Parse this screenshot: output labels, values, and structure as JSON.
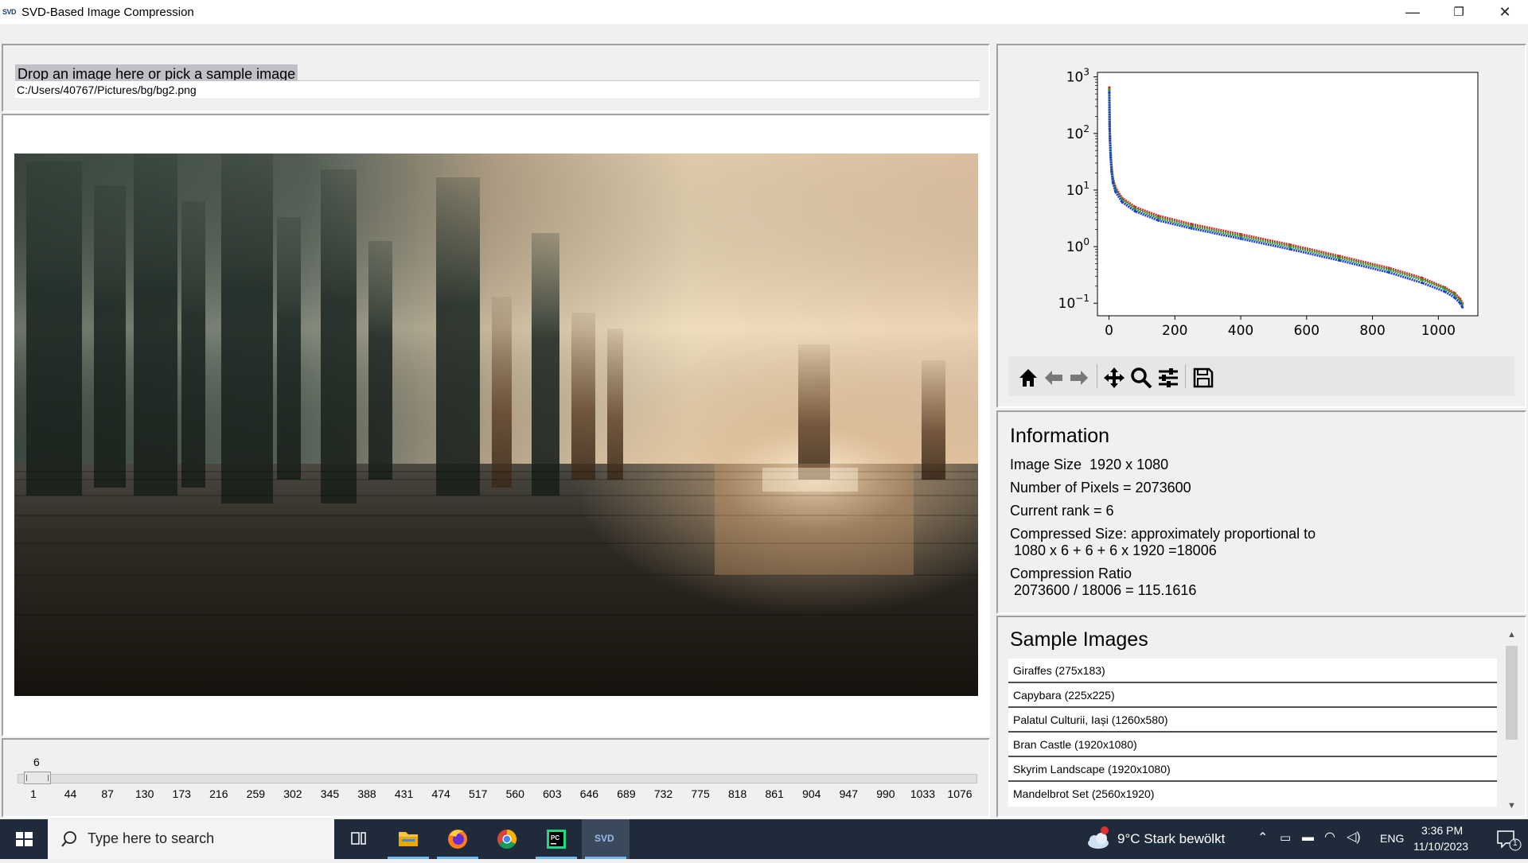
{
  "window": {
    "icon_text": "SVD",
    "title": "SVD-Based Image Compression",
    "minimize": "—",
    "restore": "❐",
    "close": "✕"
  },
  "input": {
    "drop_label": "Drop an image here or pick a sample image",
    "path_value": "C:/Users/40767/Pictures/bg/bg2.png"
  },
  "slider": {
    "current_value": "6",
    "min": 1,
    "max": 1076,
    "tick_labels": [
      "1",
      "44",
      "87",
      "130",
      "173",
      "216",
      "259",
      "302",
      "345",
      "388",
      "431",
      "474",
      "517",
      "560",
      "603",
      "646",
      "689",
      "732",
      "775",
      "818",
      "861",
      "904",
      "947",
      "990",
      "1033",
      "1076"
    ]
  },
  "chart_data": {
    "type": "scatter",
    "title": "",
    "xlabel": "",
    "ylabel": "",
    "x_ticks": [
      "0",
      "200",
      "400",
      "600",
      "800",
      "1000"
    ],
    "y_ticks": [
      "10^-1",
      "10^0",
      "10^1",
      "10^2",
      "10^3"
    ],
    "xlim": [
      -35,
      1120
    ],
    "ylim": [
      0.06,
      1200
    ],
    "yscale": "log",
    "grid": false,
    "series": [
      {
        "color": "#d62728",
        "points": [
          [
            1,
            650
          ],
          [
            2,
            150
          ],
          [
            3,
            90
          ],
          [
            5,
            45
          ],
          [
            8,
            25
          ],
          [
            12,
            16
          ],
          [
            20,
            11
          ],
          [
            40,
            7.2
          ],
          [
            80,
            5.0
          ],
          [
            150,
            3.5
          ],
          [
            250,
            2.5
          ],
          [
            400,
            1.65
          ],
          [
            550,
            1.08
          ],
          [
            700,
            0.68
          ],
          [
            850,
            0.42
          ],
          [
            950,
            0.28
          ],
          [
            1020,
            0.19
          ],
          [
            1050,
            0.15
          ],
          [
            1066,
            0.12
          ],
          [
            1073,
            0.1
          ]
        ]
      },
      {
        "color": "#2ca02c",
        "points": [
          [
            1,
            600
          ],
          [
            2,
            140
          ],
          [
            3,
            85
          ],
          [
            5,
            42
          ],
          [
            8,
            23
          ],
          [
            12,
            15
          ],
          [
            20,
            10.2
          ],
          [
            40,
            6.7
          ],
          [
            80,
            4.6
          ],
          [
            150,
            3.2
          ],
          [
            250,
            2.3
          ],
          [
            400,
            1.52
          ],
          [
            550,
            1.0
          ],
          [
            700,
            0.63
          ],
          [
            850,
            0.39
          ],
          [
            950,
            0.26
          ],
          [
            1020,
            0.18
          ],
          [
            1050,
            0.14
          ],
          [
            1066,
            0.11
          ],
          [
            1073,
            0.095
          ]
        ]
      },
      {
        "color": "#1f3fd6",
        "points": [
          [
            1,
            530
          ],
          [
            2,
            120
          ],
          [
            3,
            75
          ],
          [
            5,
            38
          ],
          [
            8,
            21
          ],
          [
            12,
            13.5
          ],
          [
            20,
            9.3
          ],
          [
            40,
            6.1
          ],
          [
            80,
            4.2
          ],
          [
            150,
            2.9
          ],
          [
            250,
            2.1
          ],
          [
            400,
            1.38
          ],
          [
            550,
            0.9
          ],
          [
            700,
            0.57
          ],
          [
            850,
            0.35
          ],
          [
            950,
            0.23
          ],
          [
            1020,
            0.16
          ],
          [
            1050,
            0.125
          ],
          [
            1066,
            0.1
          ],
          [
            1073,
            0.085
          ]
        ]
      }
    ]
  },
  "toolbar": {
    "home": "home-icon",
    "back": "back-arrow-icon",
    "forward": "forward-arrow-icon",
    "pan": "pan-icon",
    "zoom": "zoom-icon",
    "configure": "configure-subplots-icon",
    "save": "save-icon"
  },
  "information": {
    "title": "Information",
    "image_size": "Image Size  1920 x 1080",
    "num_pixels": "Number of Pixels = 2073600",
    "current_rank": "Current rank = 6",
    "compressed_size_label": "Compressed Size: approximately proportional to",
    "compressed_size_formula": " 1080 x 6 + 6 + 6 x 1920 =18006",
    "compression_ratio_label": "Compression Ratio",
    "compression_ratio_value": " 2073600 / 18006 = 115.1616"
  },
  "samples": {
    "title": "Sample Images",
    "items": [
      "Giraffes (275x183)",
      "Capybara (225x225)",
      "Palatul Culturii, Iași (1260x580)",
      "Bran Castle (1920x1080)",
      "Skyrim Landscape (1920x1080)",
      "Mandelbrot Set (2560x1920)"
    ]
  },
  "taskbar": {
    "search_placeholder": "Type here to search",
    "weather": "9°C  Stark bewölkt",
    "language": "ENG",
    "time": "3:36 PM",
    "date": "11/10/2023",
    "notification_count": "1",
    "svd_app_label": "SVD",
    "pycharm_label": "PC"
  }
}
